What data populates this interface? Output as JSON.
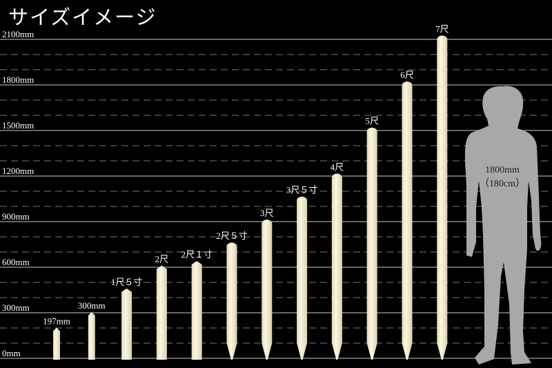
{
  "title": "サイズイメージ",
  "chart_data": {
    "type": "bar",
    "title": "サイズイメージ",
    "unit": "mm",
    "ylim": [
      0,
      2100
    ],
    "yticks": [
      0,
      300,
      600,
      900,
      1200,
      1500,
      1800,
      2100
    ],
    "ytick_labels": [
      "0mm",
      "300mm",
      "600mm",
      "900mm",
      "1200mm",
      "1500mm",
      "1800mm",
      "2100mm"
    ],
    "grid": "solid every 300mm, dashed every 100mm",
    "categories": [
      "197mm",
      "300mm",
      "1尺５寸",
      "2尺",
      "2尺１寸",
      "2尺５寸",
      "3尺",
      "3尺５寸",
      "4尺",
      "5尺",
      "6尺",
      "7尺"
    ],
    "values": [
      197,
      300,
      455,
      606,
      636,
      758,
      909,
      1061,
      1212,
      1515,
      1818,
      2121
    ],
    "bar_color": "#f2ebd0",
    "reference": {
      "label_1": "1800mm",
      "label_2": "（180cm）",
      "value": 1800,
      "color": "#a8a8a8"
    }
  }
}
